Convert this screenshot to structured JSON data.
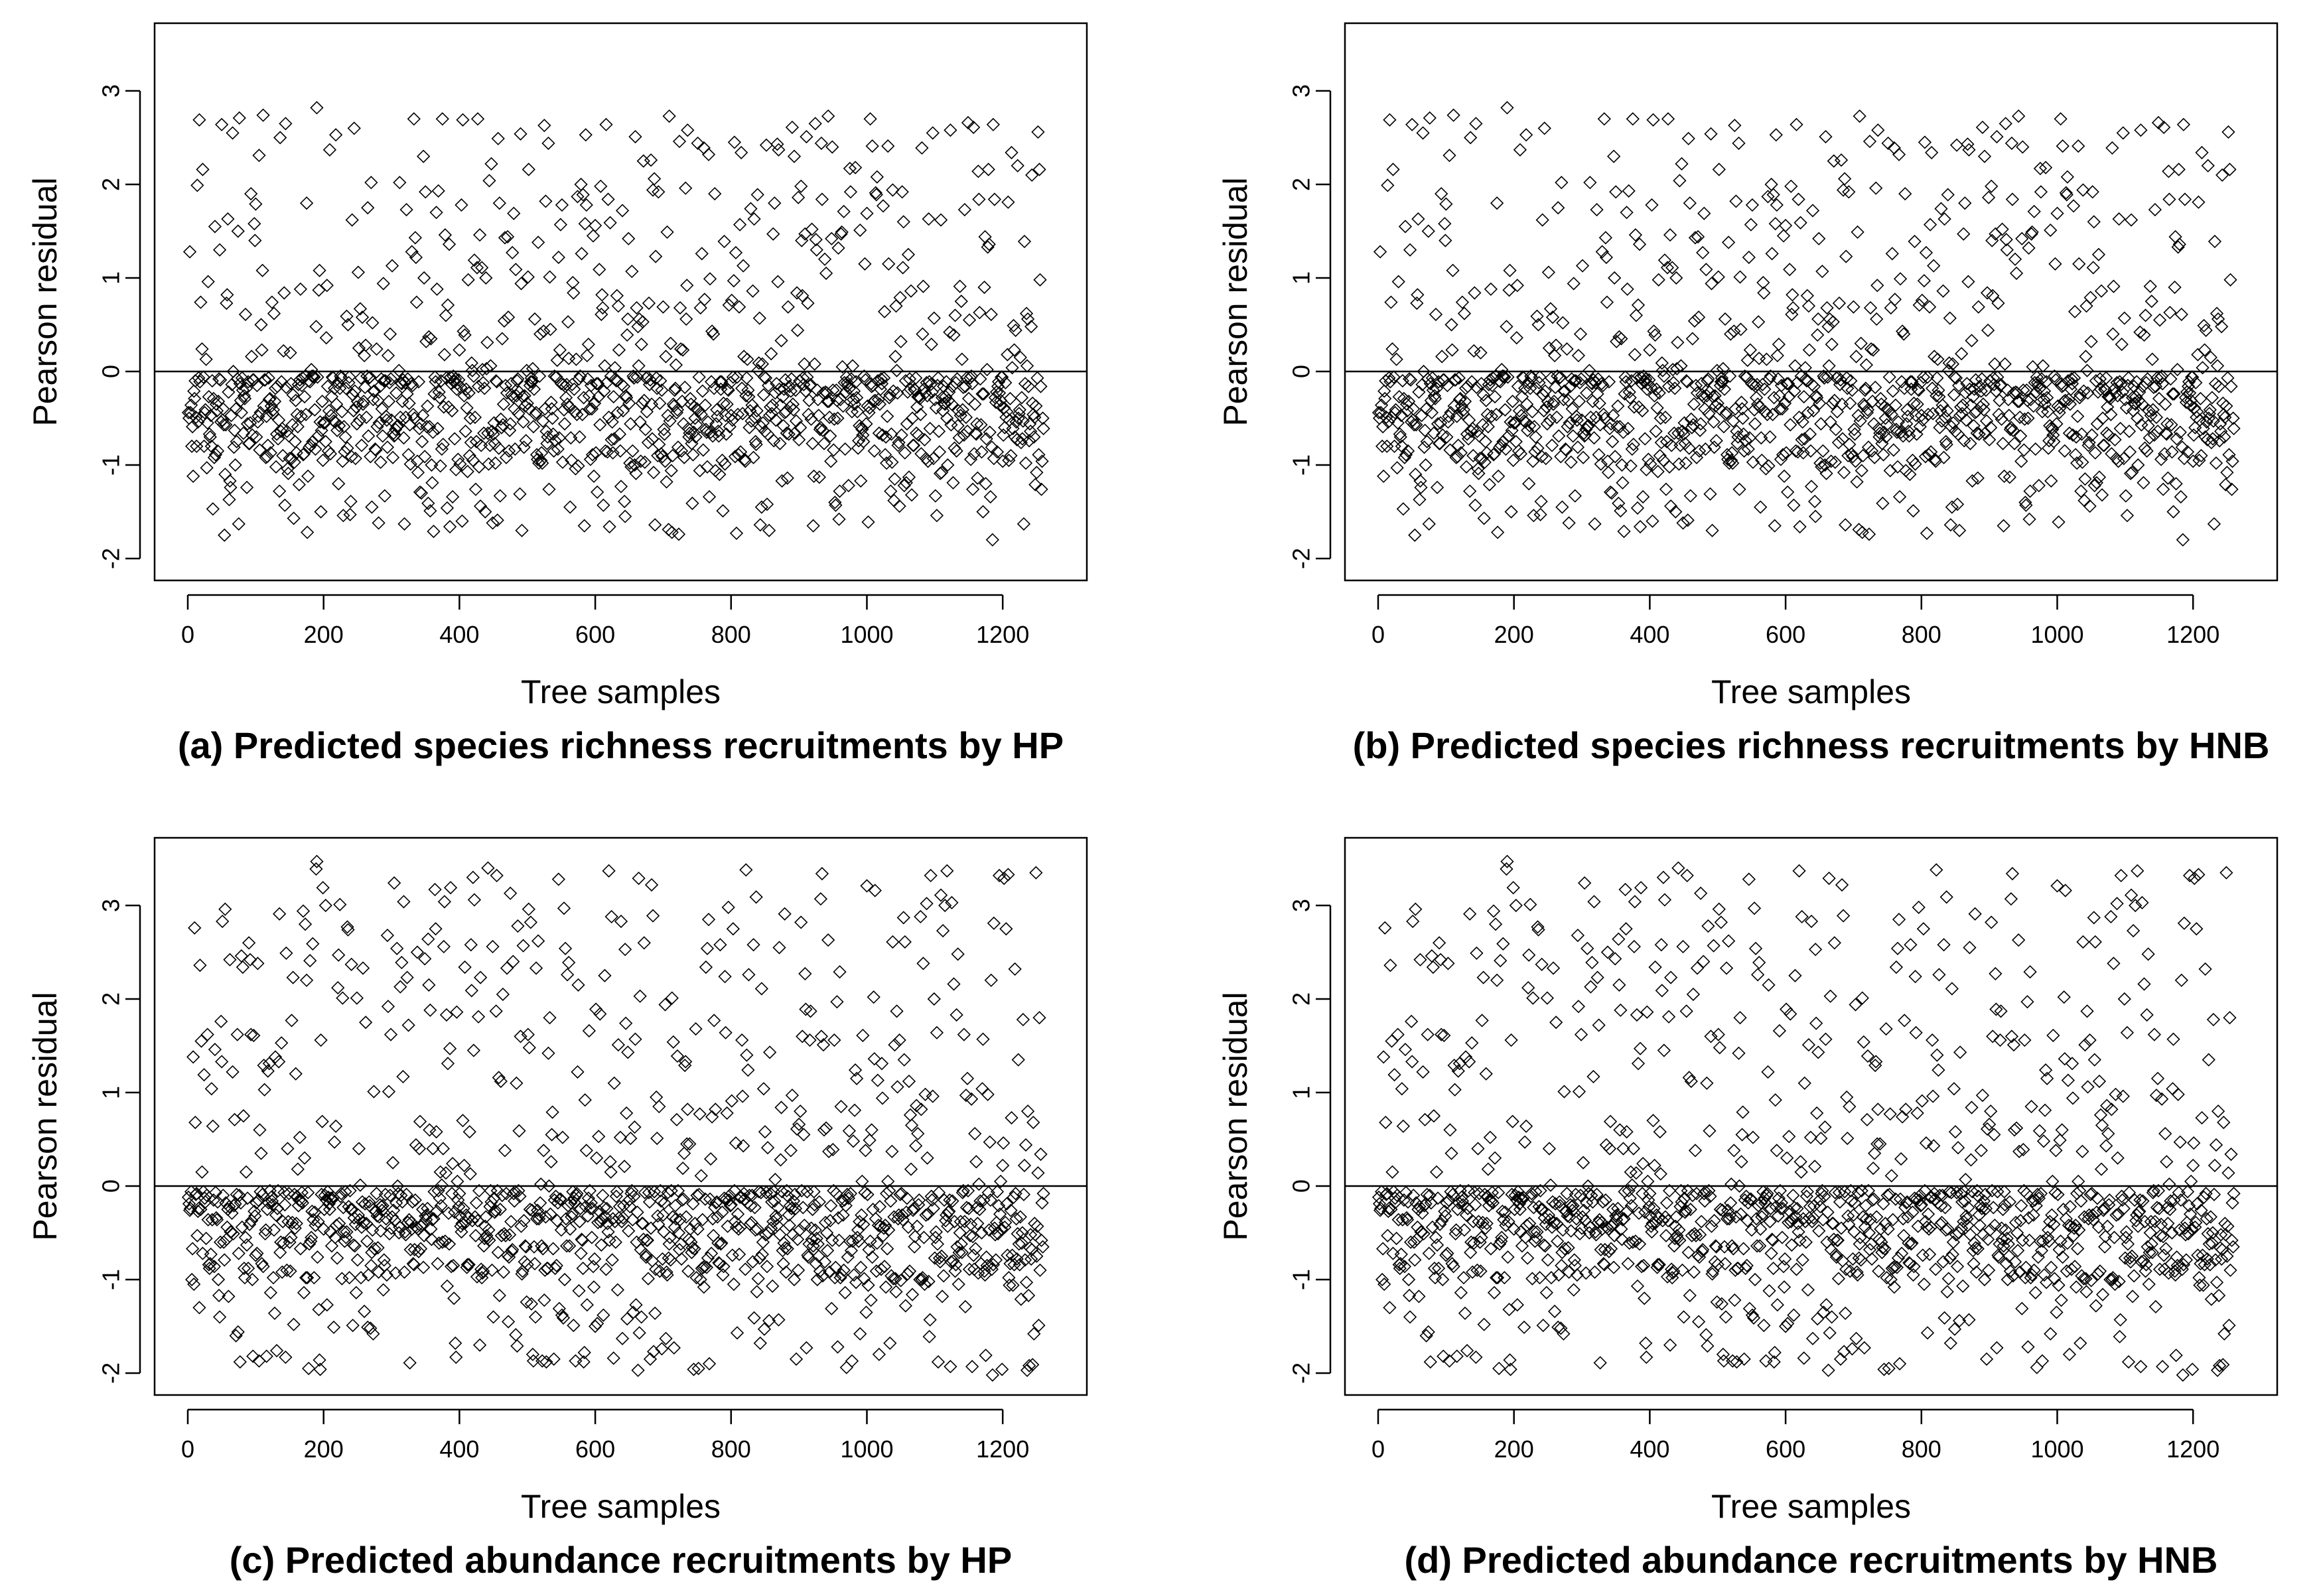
{
  "chart_data": [
    {
      "id": "a",
      "type": "scatter",
      "caption": "(a) Predicted species richness recruitments by HP",
      "xlabel": "Tree samples",
      "ylabel": "Pearson residual",
      "xlim": [
        0,
        1260
      ],
      "ylim": [
        -2,
        3.5
      ],
      "xticks": [
        0,
        200,
        400,
        600,
        800,
        1000,
        1200
      ],
      "xtick_labels": [
        "0",
        "200",
        "400",
        "600",
        "800",
        "1000",
        "1200"
      ],
      "yticks": [
        -2,
        -1,
        0,
        1,
        2,
        3
      ],
      "ytick_labels": [
        "-2",
        "-1",
        "0",
        "1",
        "2",
        "3"
      ],
      "hline": 0,
      "n_points": 1260,
      "marker": "open-diamond",
      "seed": 11,
      "max": 2.82,
      "min": -1.8
    },
    {
      "id": "b",
      "type": "scatter",
      "caption": "(b) Predicted species richness recruitments by HNB",
      "xlabel": "Tree samples",
      "ylabel": "Pearson residual",
      "xlim": [
        0,
        1260
      ],
      "ylim": [
        -2,
        3.5
      ],
      "xticks": [
        0,
        200,
        400,
        600,
        800,
        1000,
        1200
      ],
      "xtick_labels": [
        "0",
        "200",
        "400",
        "600",
        "800",
        "1000",
        "1200"
      ],
      "yticks": [
        -2,
        -1,
        0,
        1,
        2,
        3
      ],
      "ytick_labels": [
        "-2",
        "-1",
        "0",
        "1",
        "2",
        "3"
      ],
      "hline": 0,
      "n_points": 1260,
      "marker": "open-diamond",
      "seed": 11,
      "max": 2.82,
      "min": -1.8
    },
    {
      "id": "c",
      "type": "scatter",
      "caption": "(c) Predicted abundance recruitments by HP",
      "xlabel": "Tree samples",
      "ylabel": "Pearson residual",
      "xlim": [
        0,
        1260
      ],
      "ylim": [
        -2,
        3.5
      ],
      "xticks": [
        0,
        200,
        400,
        600,
        800,
        1000,
        1200
      ],
      "xtick_labels": [
        "0",
        "200",
        "400",
        "600",
        "800",
        "1000",
        "1200"
      ],
      "yticks": [
        -2,
        -1,
        0,
        1,
        2,
        3
      ],
      "ytick_labels": [
        "-2",
        "-1",
        "0",
        "1",
        "2",
        "3"
      ],
      "hline": 0,
      "n_points": 1260,
      "marker": "open-diamond",
      "seed": 29,
      "max": 3.47,
      "min": -2.02
    },
    {
      "id": "d",
      "type": "scatter",
      "caption": "(d) Predicted abundance recruitments by HNB",
      "xlabel": "Tree samples",
      "ylabel": "Pearson residual",
      "xlim": [
        0,
        1260
      ],
      "ylim": [
        -2,
        3.5
      ],
      "xticks": [
        0,
        200,
        400,
        600,
        800,
        1000,
        1200
      ],
      "xtick_labels": [
        "0",
        "200",
        "400",
        "600",
        "800",
        "1000",
        "1200"
      ],
      "yticks": [
        -2,
        -1,
        0,
        1,
        2,
        3
      ],
      "ytick_labels": [
        "-2",
        "-1",
        "0",
        "1",
        "2",
        "3"
      ],
      "hline": 0,
      "n_points": 1260,
      "marker": "open-diamond",
      "seed": 29,
      "max": 3.47,
      "min": -2.02
    }
  ]
}
